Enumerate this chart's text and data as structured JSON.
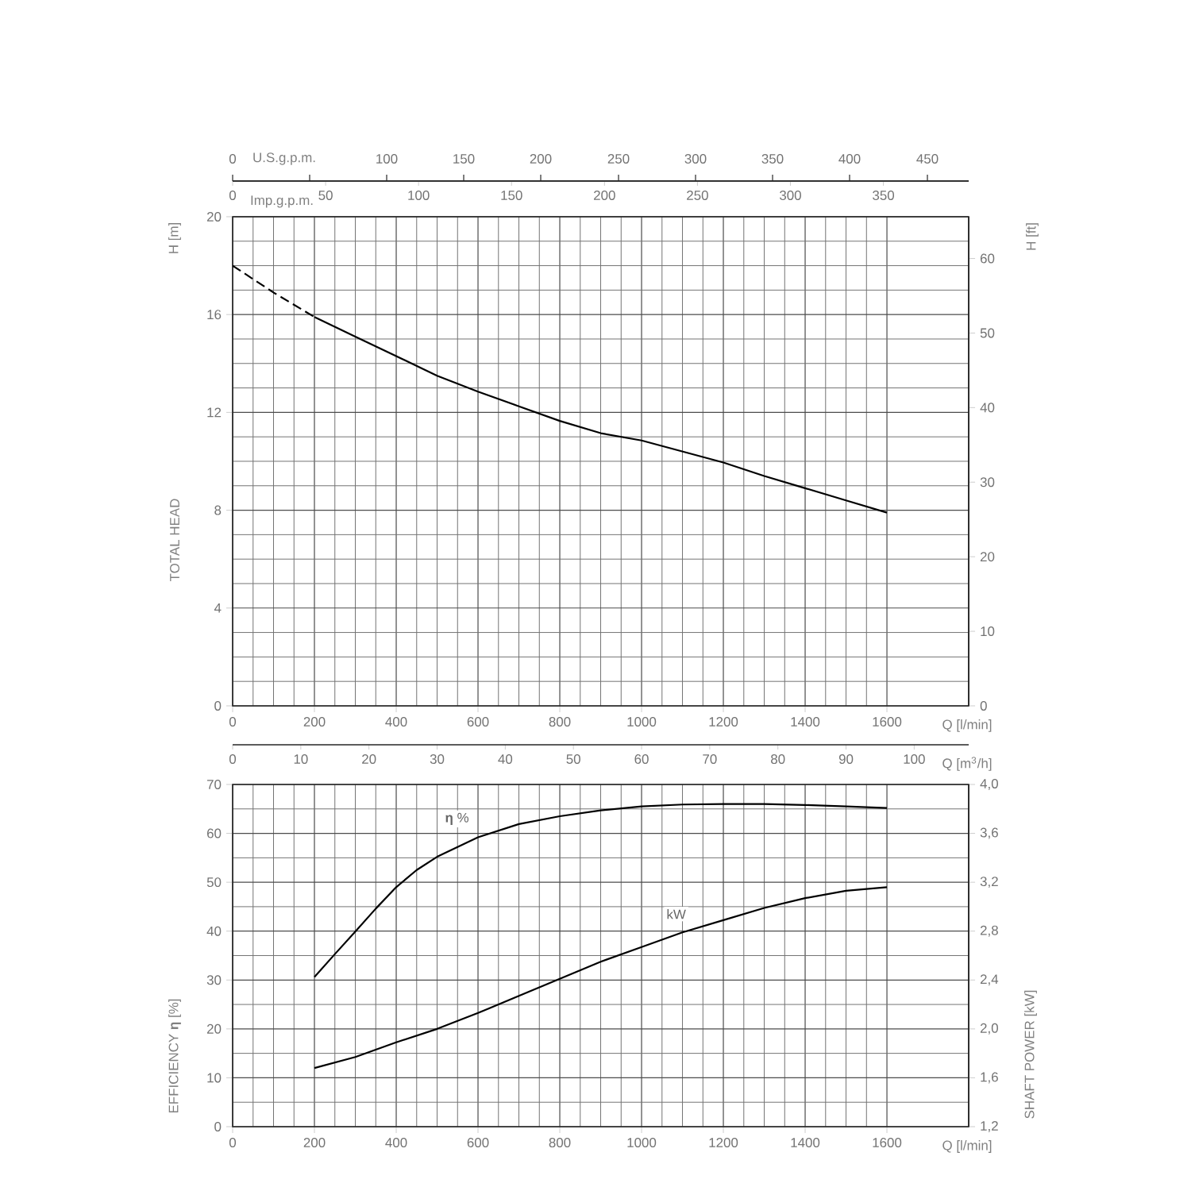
{
  "chart_data": [
    {
      "type": "other",
      "xlabel": "U.S.g.p.m.",
      "annotations": [
        "0",
        "100",
        "150",
        "200",
        "250",
        "300",
        "350",
        "400",
        "450"
      ]
    },
    {
      "type": "line",
      "xlabel": "Q [l/min]",
      "x2label": "Imp.g.p.m.",
      "ylabel": "TOTAL HEAD",
      "y2label": "H [ft]",
      "annotations": [
        "H [m]"
      ],
      "x2lim": [
        0,
        395.9
      ],
      "x2ticks": [
        0,
        50,
        100,
        150,
        200,
        250,
        300,
        350
      ],
      "xlim": [
        0,
        1800
      ],
      "xticks": [
        0,
        200,
        400,
        600,
        800,
        1000,
        1200,
        1400,
        1600
      ],
      "ylim": [
        0,
        20
      ],
      "yticks": [
        0,
        4,
        8,
        12,
        16,
        20
      ],
      "y2lim": [
        0,
        65.6
      ],
      "y2ticks": [
        0,
        10,
        20,
        30,
        40,
        50,
        60
      ],
      "grid": true,
      "series": [
        {
          "color": "#000000",
          "line_style": "dashed",
          "x": [
            0,
            100,
            200
          ],
          "values": [
            18,
            16.9,
            15.9
          ]
        },
        {
          "color": "#000000",
          "line_style": "solid",
          "x": [
            200,
            300,
            400,
            500,
            600,
            700,
            800,
            900,
            1000,
            1100,
            1200,
            1300,
            1400,
            1500,
            1600
          ],
          "values": [
            15.9,
            15.1,
            14.3,
            13.5,
            12.85,
            12.25,
            11.65,
            11.15,
            10.85,
            10.4,
            9.95,
            9.4,
            8.9,
            8.4,
            7.9
          ]
        }
      ]
    },
    {
      "type": "line",
      "xlabel": "Q [l/min]",
      "x2label": "Q [m$^{3}$/h]",
      "ylabel": "EFFICIENCY **η** [%]",
      "y2label": "SHAFT POWER [kW]",
      "xlim": [
        0,
        1800
      ],
      "xticks": [
        0,
        200,
        400,
        600,
        800,
        1000,
        1200,
        1400,
        1600
      ],
      "x2lim": [
        0,
        108
      ],
      "x2ticks": [
        0,
        10,
        20,
        30,
        40,
        50,
        60,
        70,
        80,
        90,
        100
      ],
      "ylim": [
        0,
        70
      ],
      "yticks": [
        0,
        10,
        20,
        30,
        40,
        50,
        60,
        70
      ],
      "y2lim": [
        1.2,
        4.0
      ],
      "y2ticks": [
        {
          "value": 1.2,
          "label": "1,2"
        },
        {
          "value": 1.6,
          "label": "1,6"
        },
        {
          "value": 2.0,
          "label": "2,0"
        },
        {
          "value": 2.4,
          "label": "2,4"
        },
        {
          "value": 2.8,
          "label": "2,8"
        },
        {
          "value": 3.2,
          "label": "3,2"
        },
        {
          "value": 3.6,
          "label": "3,6"
        },
        {
          "value": 4.0,
          "label": "4,0"
        }
      ],
      "grid": true,
      "series": [
        {
          "name": "**η** %",
          "color": "#000000",
          "x": [
            200,
            250,
            300,
            350,
            400,
            450,
            500,
            600,
            700,
            800,
            900,
            1000,
            1100,
            1200,
            1300,
            1400,
            1500,
            1600
          ],
          "values": [
            30.6,
            35.3,
            39.9,
            44.6,
            49.0,
            52.5,
            55.2,
            59.2,
            61.9,
            63.5,
            64.7,
            65.5,
            65.9,
            66.0,
            66.0,
            65.8,
            65.5,
            65.2
          ]
        },
        {
          "name": "kW",
          "color": "#000000",
          "axis": "y2",
          "x": [
            200,
            300,
            400,
            500,
            600,
            700,
            800,
            900,
            1000,
            1100,
            1200,
            1300,
            1400,
            1500,
            1600
          ],
          "values": [
            1.68,
            1.77,
            1.89,
            2.0,
            2.13,
            2.27,
            2.41,
            2.55,
            2.67,
            2.79,
            2.89,
            2.99,
            3.07,
            3.13,
            3.16
          ]
        }
      ]
    }
  ]
}
